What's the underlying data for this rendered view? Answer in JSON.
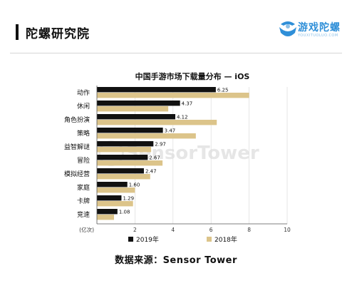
{
  "header": {
    "title": "陀螺研究院",
    "logo_text": "游戏陀螺",
    "logo_sub": "YOUXITUOLUO.COM"
  },
  "watermark": "SensorTower",
  "source_text": "数据来源：Sensor Tower",
  "chart_data": {
    "type": "bar",
    "orientation": "horizontal",
    "title": "中国手游市场下载量分布 — iOS",
    "ylabel": "(亿次)",
    "categories": [
      "动作",
      "休闲",
      "角色扮演",
      "策略",
      "益智解谜",
      "冒险",
      "模拟经营",
      "家庭",
      "卡牌",
      "竞速"
    ],
    "series": [
      {
        "name": "2019年",
        "color": "#111111",
        "values": [
          6.25,
          4.37,
          4.12,
          3.47,
          2.97,
          2.67,
          2.47,
          1.6,
          1.29,
          1.08
        ]
      },
      {
        "name": "2018年",
        "color": "#dcc48a",
        "values": [
          8.0,
          3.75,
          6.3,
          5.2,
          2.85,
          3.45,
          2.8,
          2.0,
          1.9,
          0.9
        ]
      }
    ],
    "data_labels": [
      "6.25",
      "4.37",
      "4.12",
      "3.47",
      "2.97",
      "2.67",
      "2.47",
      "1.60",
      "1.29",
      "1.08"
    ],
    "xlim": [
      0,
      10
    ],
    "xticks": [
      "2",
      "4",
      "6",
      "8",
      "10"
    ],
    "xtick_values": [
      2,
      4,
      6,
      8,
      10
    ],
    "legend_position": "bottom",
    "grid": true
  }
}
